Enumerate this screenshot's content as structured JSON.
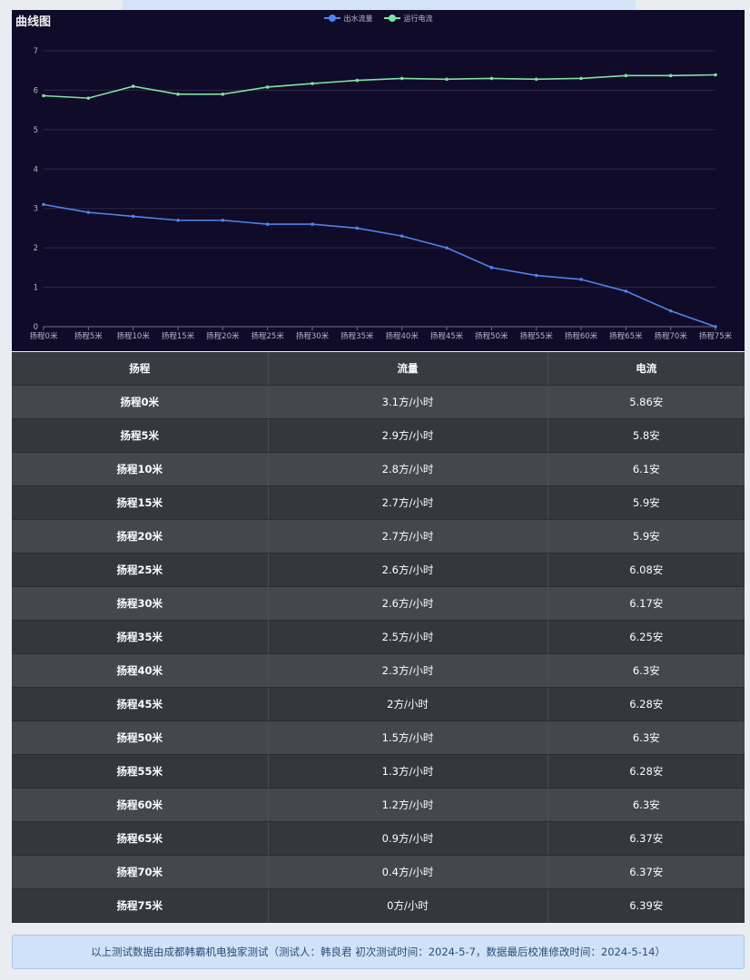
{
  "chart_data": {
    "type": "line",
    "title": "曲线图",
    "categories": [
      "扬程0米",
      "扬程5米",
      "扬程10米",
      "扬程15米",
      "扬程20米",
      "扬程25米",
      "扬程30米",
      "扬程35米",
      "扬程40米",
      "扬程45米",
      "扬程50米",
      "扬程55米",
      "扬程60米",
      "扬程65米",
      "扬程70米",
      "扬程75米"
    ],
    "series": [
      {
        "name": "出水流量",
        "color": "#4d85ea",
        "values": [
          3.1,
          2.9,
          2.8,
          2.7,
          2.7,
          2.6,
          2.6,
          2.5,
          2.3,
          2.0,
          1.5,
          1.3,
          1.2,
          0.9,
          0.4,
          0.0
        ]
      },
      {
        "name": "运行电流",
        "color": "#7de3a1",
        "values": [
          5.86,
          5.8,
          6.1,
          5.9,
          5.9,
          6.08,
          6.17,
          6.25,
          6.3,
          6.28,
          6.3,
          6.28,
          6.3,
          6.37,
          6.37,
          6.39
        ]
      }
    ],
    "ylim": [
      0,
      7
    ],
    "yticks": [
      0,
      1,
      2,
      3,
      4,
      5,
      6,
      7
    ],
    "grid": true,
    "legend": "top-center"
  },
  "table": {
    "headers": [
      "扬程",
      "流量",
      "电流"
    ],
    "rows": [
      [
        "扬程0米",
        "3.1方/小时",
        "5.86安"
      ],
      [
        "扬程5米",
        "2.9方/小时",
        "5.8安"
      ],
      [
        "扬程10米",
        "2.8方/小时",
        "6.1安"
      ],
      [
        "扬程15米",
        "2.7方/小时",
        "5.9安"
      ],
      [
        "扬程20米",
        "2.7方/小时",
        "5.9安"
      ],
      [
        "扬程25米",
        "2.6方/小时",
        "6.08安"
      ],
      [
        "扬程30米",
        "2.6方/小时",
        "6.17安"
      ],
      [
        "扬程35米",
        "2.5方/小时",
        "6.25安"
      ],
      [
        "扬程40米",
        "2.3方/小时",
        "6.3安"
      ],
      [
        "扬程45米",
        "2方/小时",
        "6.28安"
      ],
      [
        "扬程50米",
        "1.5方/小时",
        "6.3安"
      ],
      [
        "扬程55米",
        "1.3方/小时",
        "6.28安"
      ],
      [
        "扬程60米",
        "1.2方/小时",
        "6.3安"
      ],
      [
        "扬程65米",
        "0.9方/小时",
        "6.37安"
      ],
      [
        "扬程70米",
        "0.4方/小时",
        "6.37安"
      ],
      [
        "扬程75米",
        "0方/小时",
        "6.39安"
      ]
    ]
  },
  "footer": {
    "note": "以上测试数据由成都韩霸机电独家测试（测试人：韩良君    初次测试时间：2024-5-7，数据最后校准修改时间：2024-5-14）"
  }
}
